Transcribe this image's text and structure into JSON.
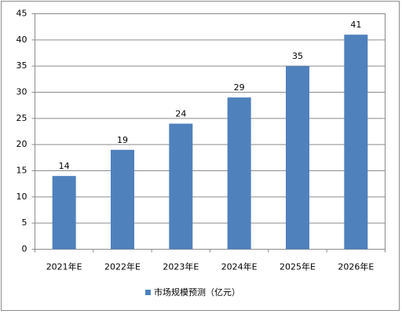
{
  "chart_data": {
    "type": "bar",
    "categories": [
      "2021年E",
      "2022年E",
      "2023年E",
      "2024年E",
      "2025年E",
      "2026年E"
    ],
    "series": [
      {
        "name": "市场规模预测（亿元）",
        "color": "#4f81bd",
        "values": [
          14,
          19,
          24,
          29,
          35,
          41
        ]
      }
    ],
    "ylim": [
      0,
      45
    ],
    "yticks": [
      0,
      5,
      10,
      15,
      20,
      25,
      30,
      35,
      40,
      45
    ],
    "grid": true,
    "legend": "bottom"
  }
}
